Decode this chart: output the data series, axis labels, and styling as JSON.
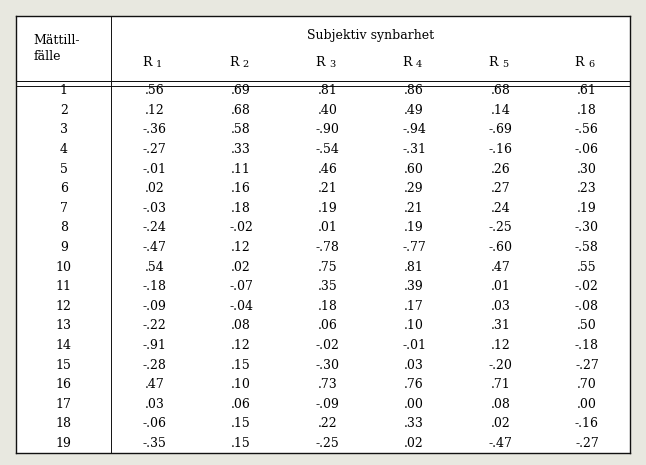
{
  "super_header": "Subjektiv synbarhet",
  "col0_header": "Mättill-\nfälle",
  "sub_headers": [
    "R 1",
    "R 2",
    "R 3",
    "R 4",
    "R 5",
    "R 6"
  ],
  "subscripts": [
    "1",
    "2",
    "3",
    "4",
    "5",
    "6"
  ],
  "rows": [
    [
      1,
      ".56",
      ".69",
      ".81",
      ".86",
      ".68",
      ".61"
    ],
    [
      2,
      ".12",
      ".68",
      ".40",
      ".49",
      ".14",
      ".18"
    ],
    [
      3,
      "-.36",
      ".58",
      "-.90",
      "-.94",
      "-.69",
      "-.56"
    ],
    [
      4,
      "-.27",
      ".33",
      "-.54",
      "-.31",
      "-.16",
      "-.06"
    ],
    [
      5,
      "-.01",
      ".11",
      ".46",
      ".60",
      ".26",
      ".30"
    ],
    [
      6,
      ".02",
      ".16",
      ".21",
      ".29",
      ".27",
      ".23"
    ],
    [
      7,
      "-.03",
      ".18",
      ".19",
      ".21",
      ".24",
      ".19"
    ],
    [
      8,
      "-.24",
      "-.02",
      ".01",
      ".19",
      "-.25",
      "-.30"
    ],
    [
      9,
      "-.47",
      ".12",
      "-.78",
      "-.77",
      "-.60",
      "-.58"
    ],
    [
      10,
      ".54",
      ".02",
      ".75",
      ".81",
      ".47",
      ".55"
    ],
    [
      11,
      "-.18",
      "-.07",
      ".35",
      ".39",
      ".01",
      "-.02"
    ],
    [
      12,
      "-.09",
      "-.04",
      ".18",
      ".17",
      ".03",
      "-.08"
    ],
    [
      13,
      "-.22",
      ".08",
      ".06",
      ".10",
      ".31",
      ".50"
    ],
    [
      14,
      "-.91",
      ".12",
      "-.02",
      "-.01",
      ".12",
      "-.18"
    ],
    [
      15,
      "-.28",
      ".15",
      "-.30",
      ".03",
      "-.20",
      "-.27"
    ],
    [
      16,
      ".47",
      ".10",
      ".73",
      ".76",
      ".71",
      ".70"
    ],
    [
      17,
      ".03",
      ".06",
      "-.09",
      ".00",
      ".08",
      ".00"
    ],
    [
      18,
      "-.06",
      ".15",
      ".22",
      ".33",
      ".02",
      "-.16"
    ],
    [
      19,
      "-.35",
      ".15",
      "-.25",
      ".02",
      "-.47",
      "-.27"
    ]
  ],
  "bg_color": "#e8e8e0",
  "white": "#ffffff",
  "border_color": "#111111",
  "font_size": 9,
  "header_font_size": 9
}
